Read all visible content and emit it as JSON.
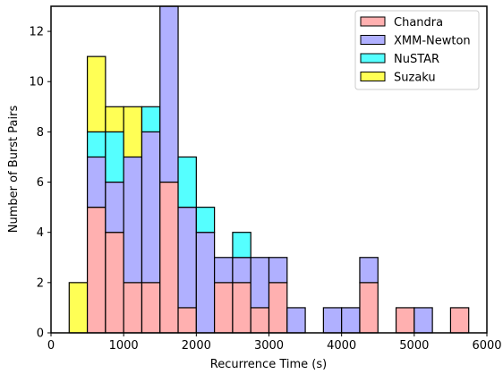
{
  "chart_data": {
    "type": "bar",
    "stacked": true,
    "title": "",
    "xlabel": "Recurrence Time (s)",
    "ylabel": "Number of Burst Pairs",
    "xlim": [
      0,
      6000
    ],
    "ylim": [
      0,
      13
    ],
    "xticks": [
      0,
      1000,
      2000,
      3000,
      4000,
      5000,
      6000
    ],
    "yticks": [
      0,
      2,
      4,
      6,
      8,
      10,
      12
    ],
    "grid": false,
    "legend_position": "top-right",
    "bin_width": 250,
    "bin_starts": [
      250,
      500,
      750,
      1000,
      1250,
      1500,
      1750,
      2000,
      2250,
      2500,
      2750,
      3000,
      3250,
      3500,
      3750,
      4000,
      4250,
      4500,
      4750,
      5000,
      5250,
      5500
    ],
    "series": [
      {
        "name": "Chandra",
        "color": "#ffb0b0",
        "values": [
          0,
          5,
          4,
          2,
          2,
          6,
          1,
          0,
          2,
          2,
          1,
          2,
          0,
          0,
          0,
          0,
          2,
          0,
          1,
          0,
          0,
          1
        ]
      },
      {
        "name": "XMM-Newton",
        "color": "#b0b0ff",
        "values": [
          0,
          2,
          2,
          5,
          6,
          7,
          4,
          4,
          1,
          1,
          2,
          1,
          1,
          0,
          1,
          1,
          1,
          0,
          0,
          1,
          0,
          0
        ]
      },
      {
        "name": "NuSTAR",
        "color": "#55ffff",
        "values": [
          0,
          1,
          2,
          0,
          1,
          0,
          2,
          1,
          0,
          1,
          0,
          0,
          0,
          0,
          0,
          0,
          0,
          0,
          0,
          0,
          0,
          0
        ]
      },
      {
        "name": "Suzaku",
        "color": "#ffff55",
        "values": [
          2,
          3,
          1,
          2,
          0,
          0,
          0,
          0,
          0,
          0,
          0,
          0,
          0,
          0,
          0,
          0,
          0,
          0,
          0,
          0,
          0,
          0
        ]
      }
    ]
  }
}
